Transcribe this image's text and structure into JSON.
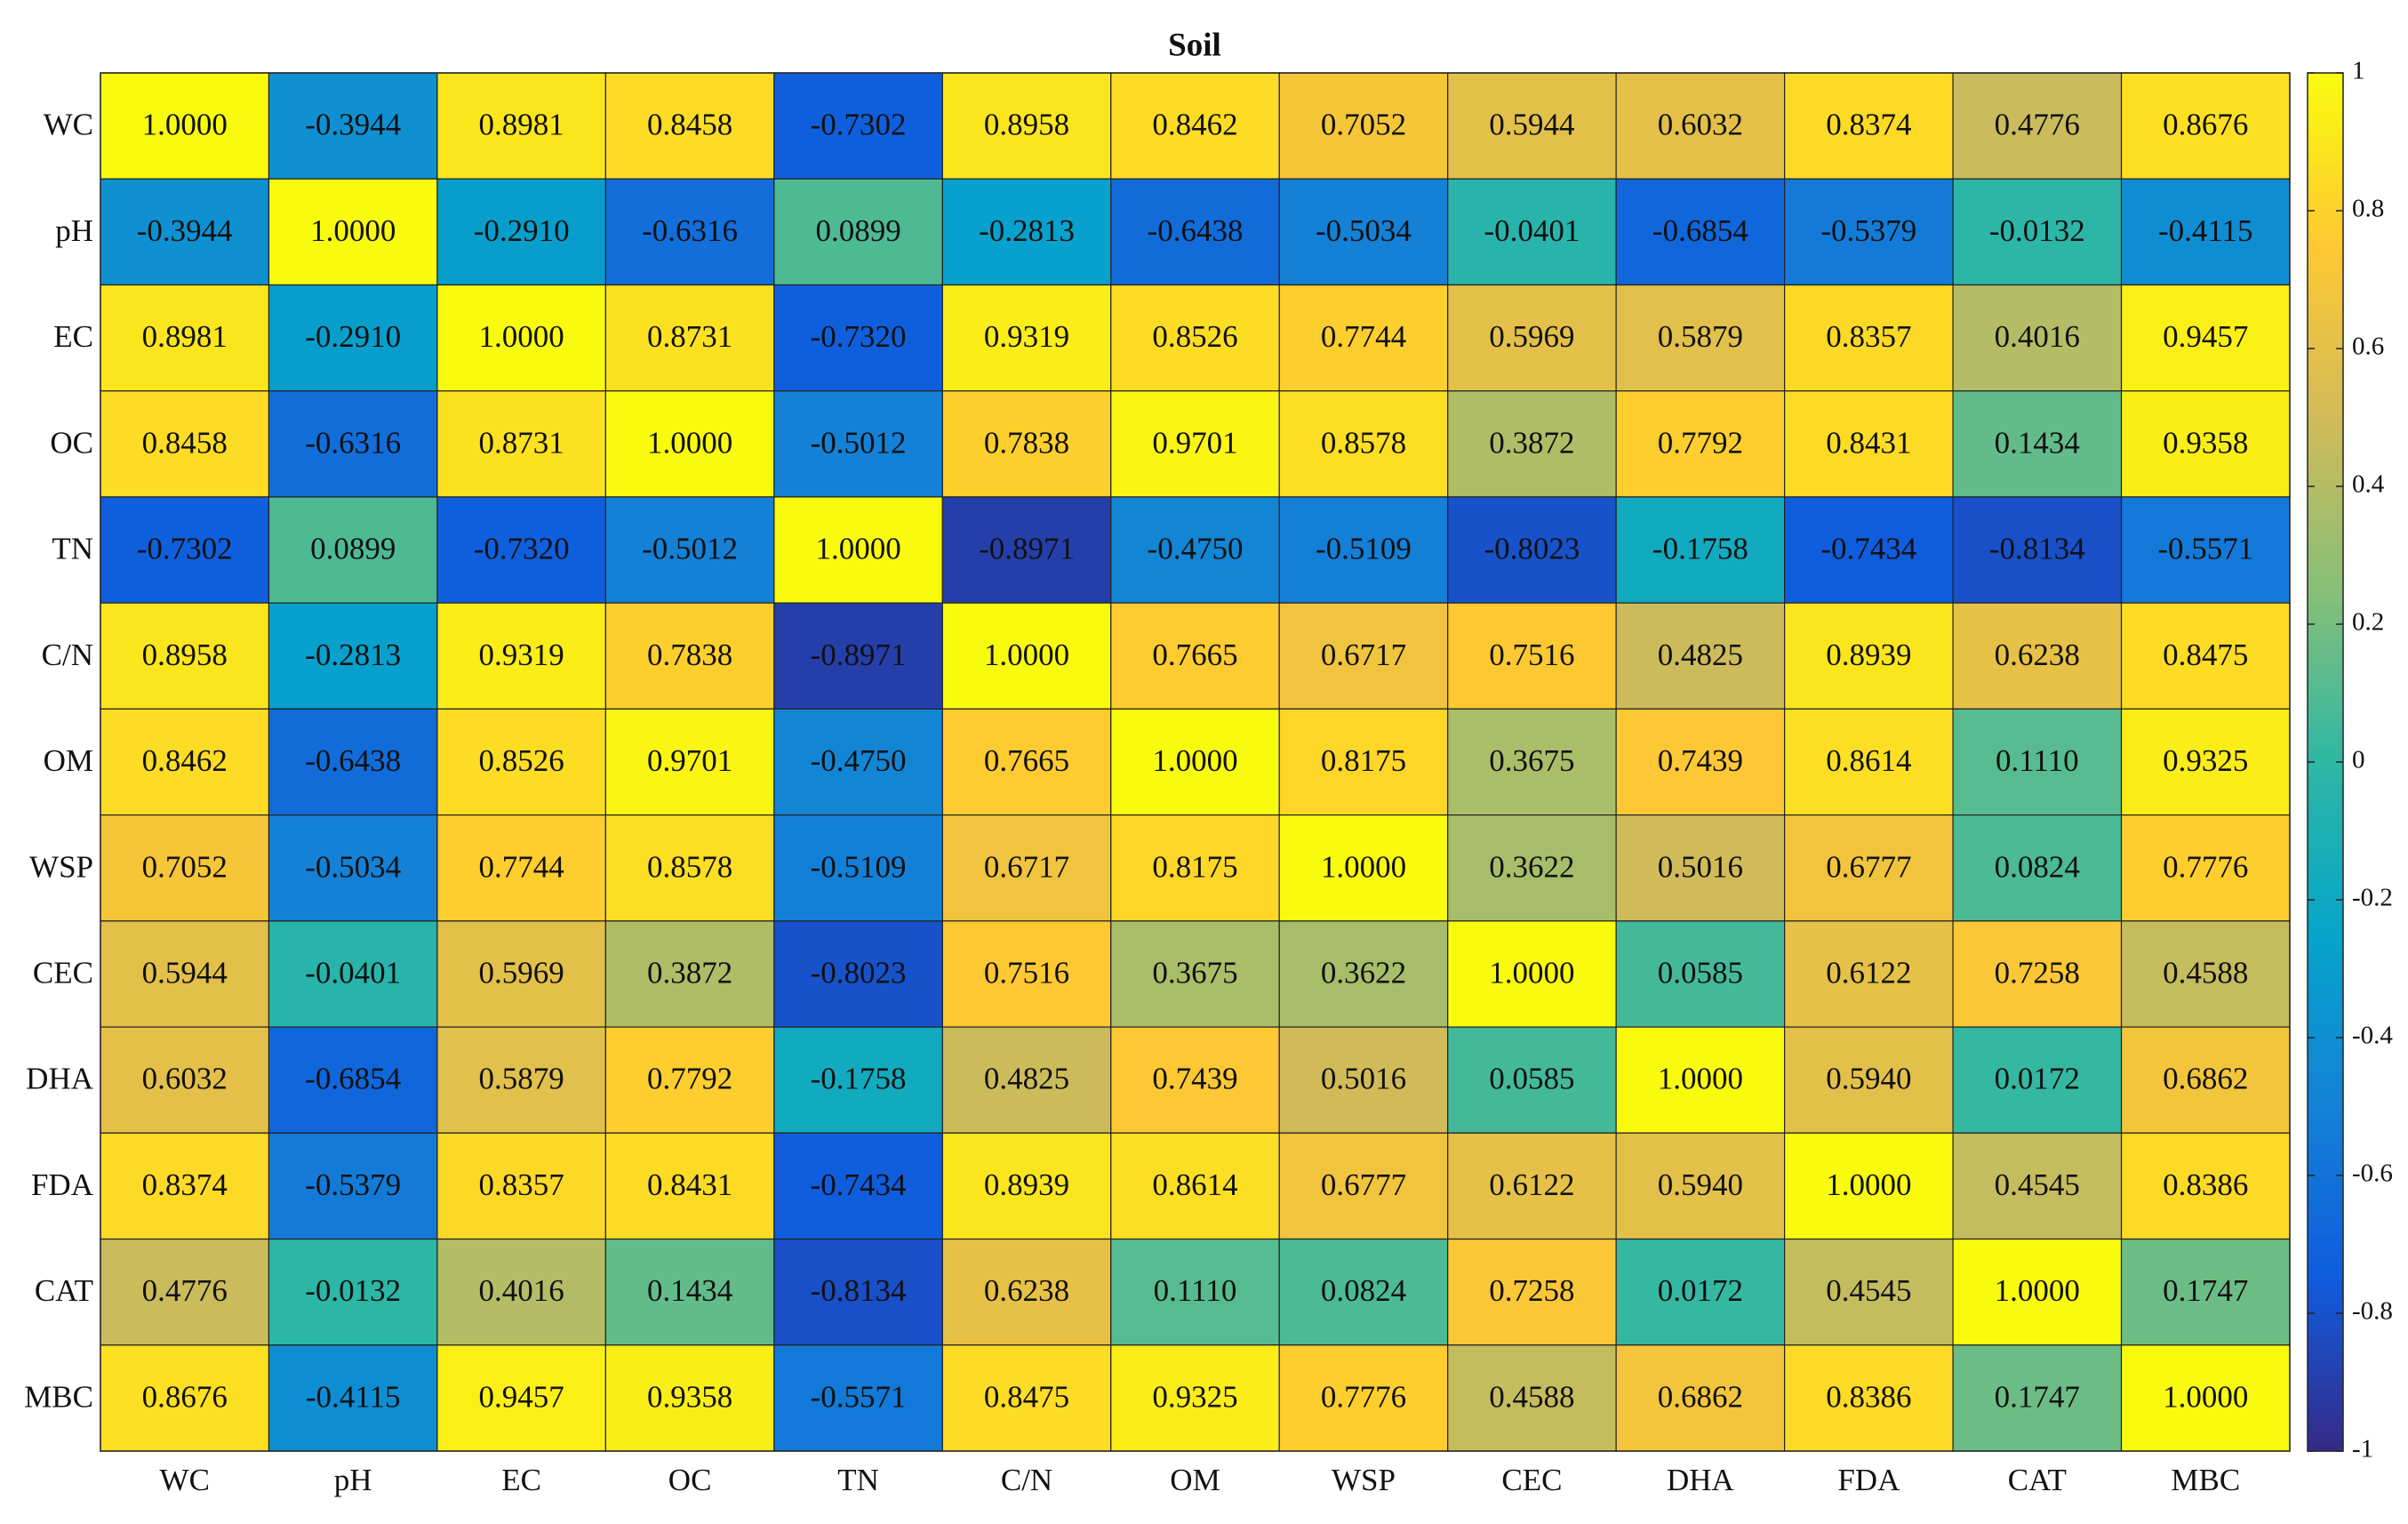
{
  "chart_data": {
    "type": "heatmap",
    "title": "Soil",
    "colormap": "parula",
    "categories": [
      "WC",
      "pH",
      "EC",
      "OC",
      "TN",
      "C/N",
      "OM",
      "WSP",
      "CEC",
      "DHA",
      "FDA",
      "CAT",
      "MBC"
    ],
    "values": [
      [
        1,
        -0.3944,
        0.8981,
        0.8458,
        -0.7302,
        0.8958,
        0.8462,
        0.7052,
        0.5944,
        0.6032,
        0.8374,
        0.4776,
        0.8676
      ],
      [
        -0.3944,
        1,
        -0.291,
        -0.6316,
        0.0899,
        -0.2813,
        -0.6438,
        -0.5034,
        -0.0401,
        -0.6854,
        -0.5379,
        -0.0132,
        -0.4115
      ],
      [
        0.8981,
        -0.291,
        1,
        0.8731,
        -0.732,
        0.9319,
        0.8526,
        0.7744,
        0.5969,
        0.5879,
        0.8357,
        0.4016,
        0.9457
      ],
      [
        0.8458,
        -0.6316,
        0.8731,
        1,
        -0.5012,
        0.7838,
        0.9701,
        0.8578,
        0.3872,
        0.7792,
        0.8431,
        0.1434,
        0.9358
      ],
      [
        -0.7302,
        0.0899,
        -0.732,
        -0.5012,
        1,
        -0.8971,
        -0.475,
        -0.5109,
        -0.8023,
        -0.1758,
        -0.7434,
        -0.8134,
        -0.5571
      ],
      [
        0.8958,
        -0.2813,
        0.9319,
        0.7838,
        -0.8971,
        1,
        0.7665,
        0.6717,
        0.7516,
        0.4825,
        0.8939,
        0.6238,
        0.8475
      ],
      [
        0.8462,
        -0.6438,
        0.8526,
        0.9701,
        -0.475,
        0.7665,
        1,
        0.8175,
        0.3675,
        0.7439,
        0.8614,
        0.111,
        0.9325
      ],
      [
        0.7052,
        -0.5034,
        0.7744,
        0.8578,
        -0.5109,
        0.6717,
        0.8175,
        1,
        0.3622,
        0.5016,
        0.6777,
        0.0824,
        0.7776
      ],
      [
        0.5944,
        -0.0401,
        0.5969,
        0.3872,
        -0.8023,
        0.7516,
        0.3675,
        0.3622,
        1,
        0.0585,
        0.6122,
        0.7258,
        0.4588
      ],
      [
        0.6032,
        -0.6854,
        0.5879,
        0.7792,
        -0.1758,
        0.4825,
        0.7439,
        0.5016,
        0.0585,
        1,
        0.594,
        0.0172,
        0.6862
      ],
      [
        0.8374,
        -0.5379,
        0.8357,
        0.8431,
        -0.7434,
        0.8939,
        0.8614,
        0.6777,
        0.6122,
        0.594,
        1,
        0.4545,
        0.8386
      ],
      [
        0.4776,
        -0.0132,
        0.4016,
        0.1434,
        -0.8134,
        0.6238,
        0.111,
        0.0824,
        0.7258,
        0.0172,
        0.4545,
        1,
        0.1747
      ],
      [
        0.8676,
        -0.4115,
        0.9457,
        0.9358,
        -0.5571,
        0.8475,
        0.9325,
        0.7776,
        0.4588,
        0.6862,
        0.8386,
        0.1747,
        1
      ]
    ],
    "value_labels": [
      [
        "1.0000",
        "-0.3944",
        "0.8981",
        "0.8458",
        "-0.7302",
        "0.8958",
        "0.8462",
        "0.7052",
        "0.5944",
        "0.6032",
        "0.8374",
        "0.4776",
        "0.8676"
      ],
      [
        "-0.3944",
        "1.0000",
        "-0.2910",
        "-0.6316",
        "0.0899",
        "-0.2813",
        "-0.6438",
        "-0.5034",
        "-0.0401",
        "-0.6854",
        "-0.5379",
        "-0.0132",
        "-0.4115"
      ],
      [
        "0.8981",
        "-0.2910",
        "1.0000",
        "0.8731",
        "-0.7320",
        "0.9319",
        "0.8526",
        "0.7744",
        "0.5969",
        "0.5879",
        "0.8357",
        "0.4016",
        "0.9457"
      ],
      [
        "0.8458",
        "-0.6316",
        "0.8731",
        "1.0000",
        "-0.5012",
        "0.7838",
        "0.9701",
        "0.8578",
        "0.3872",
        "0.7792",
        "0.8431",
        "0.1434",
        "0.9358"
      ],
      [
        "-0.7302",
        "0.0899",
        "-0.7320",
        "-0.5012",
        "1.0000",
        "-0.8971",
        "-0.4750",
        "-0.5109",
        "-0.8023",
        "-0.1758",
        "-0.7434",
        "-0.8134",
        "-0.5571"
      ],
      [
        "0.8958",
        "-0.2813",
        "0.9319",
        "0.7838",
        "-0.8971",
        "1.0000",
        "0.7665",
        "0.6717",
        "0.7516",
        "0.4825",
        "0.8939",
        "0.6238",
        "0.8475"
      ],
      [
        "0.8462",
        "-0.6438",
        "0.8526",
        "0.9701",
        "-0.4750",
        "0.7665",
        "1.0000",
        "0.8175",
        "0.3675",
        "0.7439",
        "0.8614",
        "0.1110",
        "0.9325"
      ],
      [
        "0.7052",
        "-0.5034",
        "0.7744",
        "0.8578",
        "-0.5109",
        "0.6717",
        "0.8175",
        "1.0000",
        "0.3622",
        "0.5016",
        "0.6777",
        "0.0824",
        "0.7776"
      ],
      [
        "0.5944",
        "-0.0401",
        "0.5969",
        "0.3872",
        "-0.8023",
        "0.7516",
        "0.3675",
        "0.3622",
        "1.0000",
        "0.0585",
        "0.6122",
        "0.7258",
        "0.4588"
      ],
      [
        "0.6032",
        "-0.6854",
        "0.5879",
        "0.7792",
        "-0.1758",
        "0.4825",
        "0.7439",
        "0.5016",
        "0.0585",
        "1.0000",
        "0.5940",
        "0.0172",
        "0.6862"
      ],
      [
        "0.8374",
        "-0.5379",
        "0.8357",
        "0.8431",
        "-0.7434",
        "0.8939",
        "0.8614",
        "0.6777",
        "0.6122",
        "0.5940",
        "1.0000",
        "0.4545",
        "0.8386"
      ],
      [
        "0.4776",
        "-0.0132",
        "0.4016",
        "0.1434",
        "-0.8134",
        "0.6238",
        "0.1110",
        "0.0824",
        "0.7258",
        "0.0172",
        "0.4545",
        "1.0000",
        "0.1747"
      ],
      [
        "0.8676",
        "-0.4115",
        "0.9457",
        "0.9358",
        "-0.5571",
        "0.8475",
        "0.9325",
        "0.7776",
        "0.4588",
        "0.6862",
        "0.8386",
        "0.1747",
        "1.0000"
      ]
    ],
    "zlim": [
      -1,
      1
    ],
    "zticks": [
      -1,
      -0.8,
      -0.6,
      -0.4,
      -0.2,
      0,
      0.2,
      0.4,
      0.6,
      0.8,
      1
    ]
  }
}
